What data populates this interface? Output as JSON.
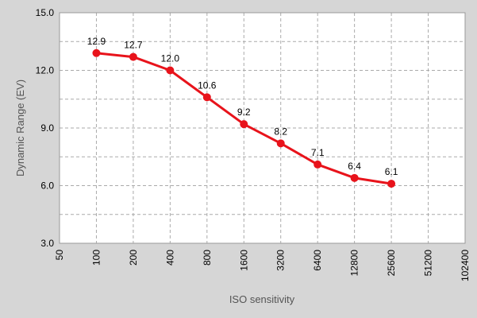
{
  "chart_data": {
    "type": "line",
    "xlabel": "ISO sensitivity",
    "ylabel": "Dynamic Range (EV)",
    "x_categories": [
      "50",
      "100",
      "200",
      "400",
      "800",
      "1600",
      "3200",
      "6400",
      "12800",
      "25600",
      "51200",
      "102400"
    ],
    "y_ticks": [
      "3.0",
      "6.0",
      "9.0",
      "12.0",
      "15.0"
    ],
    "ylim": [
      3.0,
      15.0
    ],
    "grid": true,
    "series": [
      {
        "x": [
          "100",
          "200",
          "400",
          "800",
          "1600",
          "3200",
          "6400",
          "12800",
          "25600"
        ],
        "values": [
          12.9,
          12.7,
          12.0,
          10.6,
          9.2,
          8.2,
          7.1,
          6.4,
          6.1
        ],
        "labels": [
          "12.9",
          "12.7",
          "12.0",
          "10.6",
          "9.2",
          "8.2",
          "7.1",
          "6.4",
          "6.1"
        ],
        "color": "#e8131b"
      }
    ],
    "colors": {
      "background": "#d6d6d6",
      "plot_background": "#ffffff",
      "grid": "#aaaaaa"
    }
  }
}
